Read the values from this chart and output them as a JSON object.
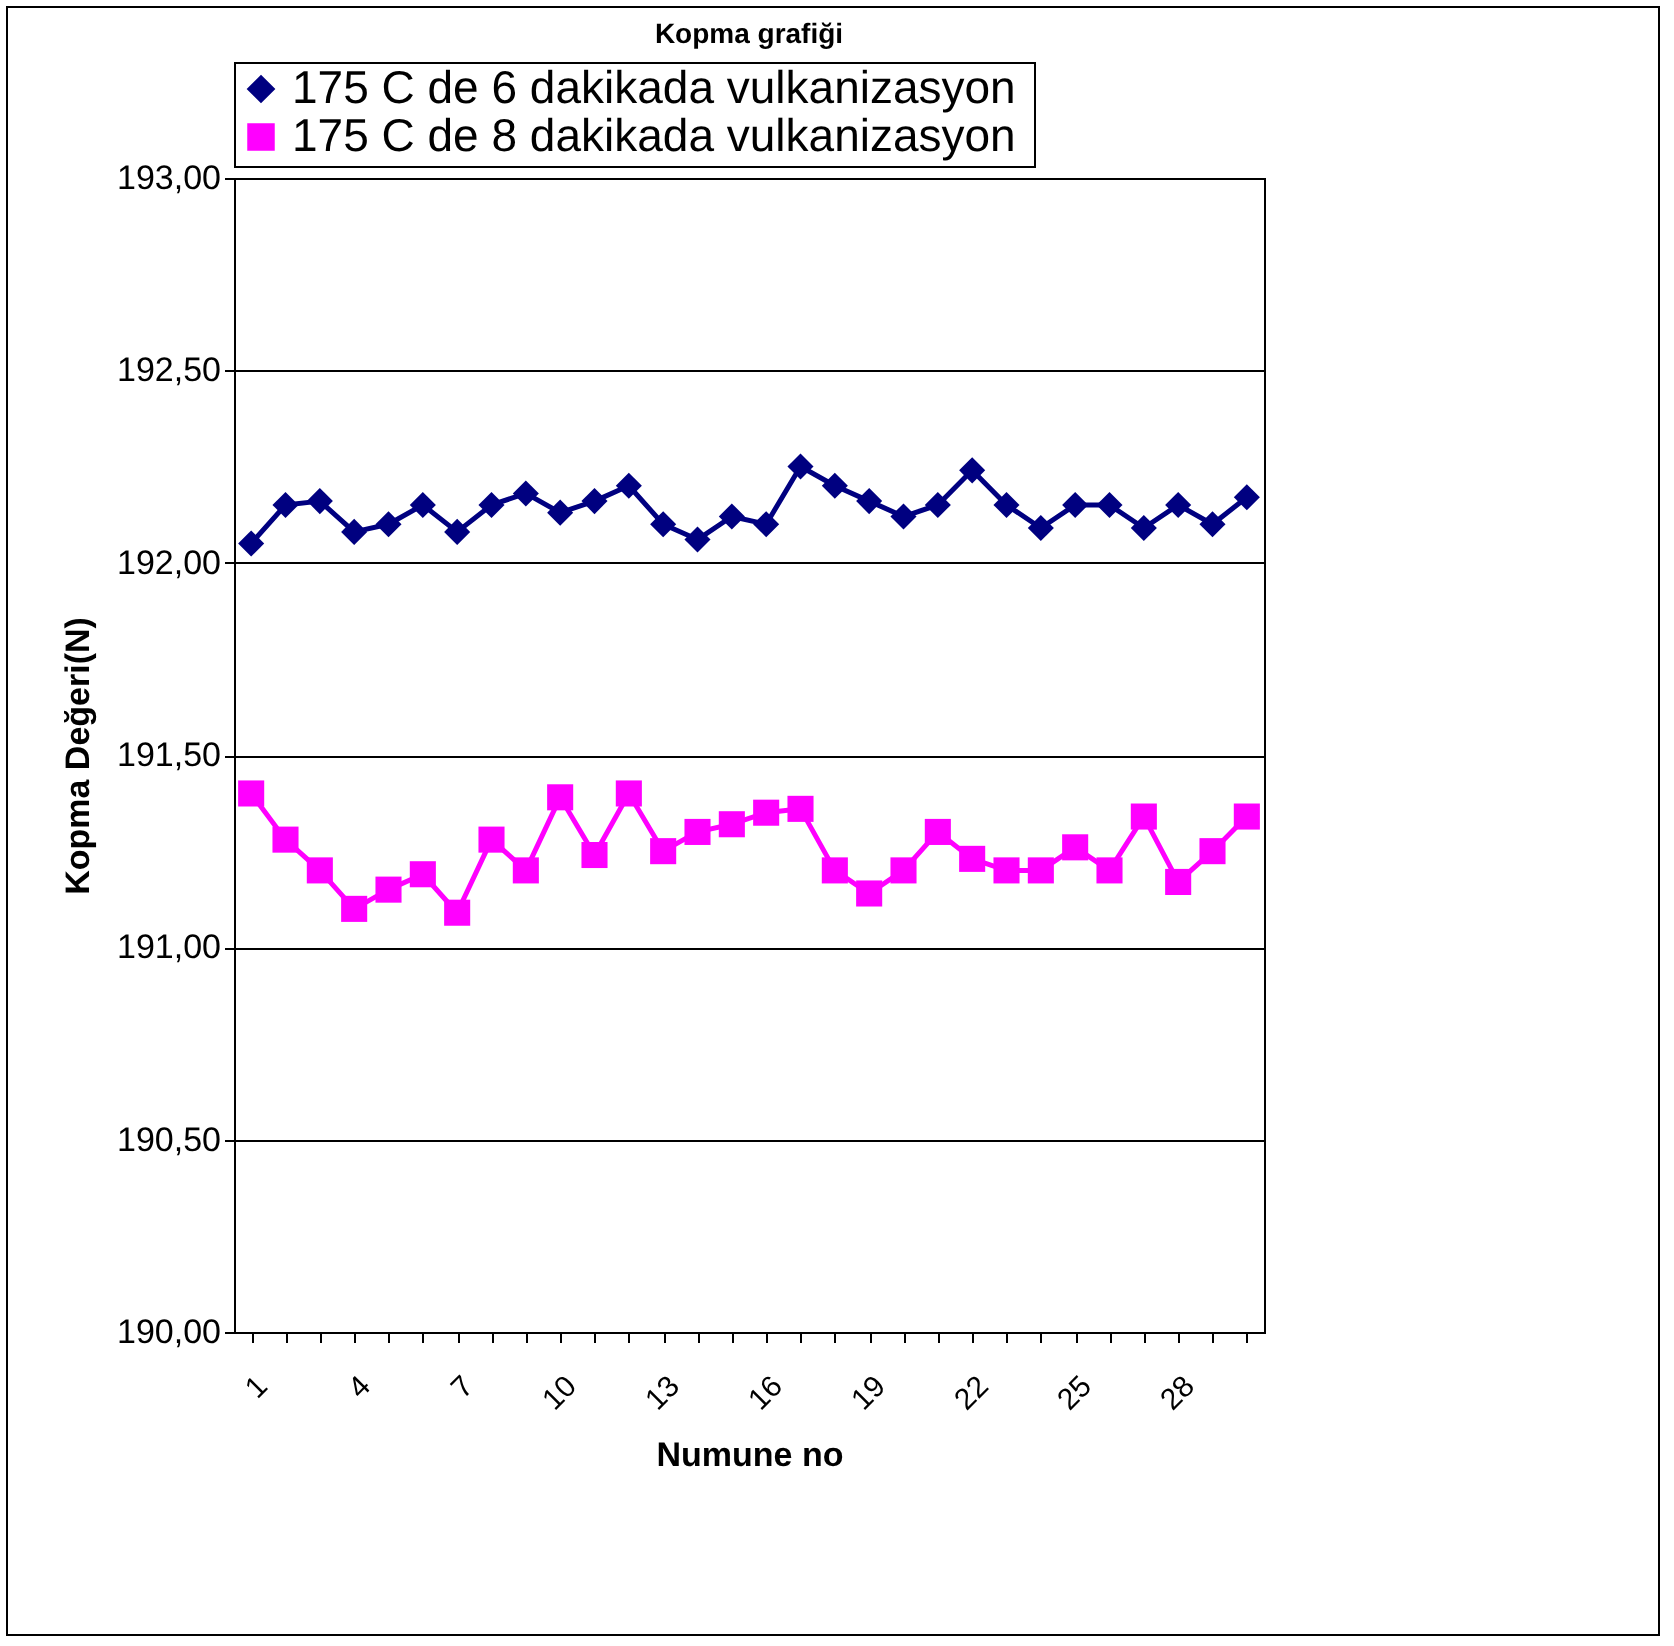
{
  "chart_data": {
    "type": "line",
    "title": "Kopma grafiği",
    "xlabel": "Numune no",
    "ylabel": "Kopma Değeri(N)",
    "categories": [
      "1",
      null,
      null,
      "4",
      null,
      null,
      "7",
      null,
      null,
      "10",
      null,
      null,
      "13",
      null,
      null,
      "16",
      null,
      null,
      "19",
      null,
      null,
      "22",
      null,
      null,
      "25",
      null,
      null,
      "28",
      null,
      null
    ],
    "series": [
      {
        "name": "175 C de 6 dakikada vulkanizasyon",
        "color": "#000080",
        "marker": "diamond",
        "values": [
          192.05,
          192.15,
          192.16,
          192.08,
          192.1,
          192.15,
          192.08,
          192.15,
          192.18,
          192.13,
          192.16,
          192.2,
          192.1,
          192.06,
          192.12,
          192.1,
          192.25,
          192.2,
          192.16,
          192.12,
          192.15,
          192.24,
          192.15,
          192.09,
          192.15,
          192.15,
          192.09,
          192.15,
          192.1,
          192.17
        ]
      },
      {
        "name": "175 C  de 8 dakikada vulkanizasyon",
        "color": "#ff00ff",
        "marker": "square",
        "values": [
          191.4,
          191.28,
          191.2,
          191.1,
          191.15,
          191.19,
          191.09,
          191.28,
          191.2,
          191.39,
          191.24,
          191.4,
          191.25,
          191.3,
          191.32,
          191.35,
          191.36,
          191.2,
          191.14,
          191.2,
          191.3,
          191.23,
          191.2,
          191.2,
          191.26,
          191.2,
          191.34,
          191.17,
          191.25,
          191.34
        ]
      }
    ],
    "ylim": [
      190,
      193
    ],
    "yticks": [
      {
        "value": 190,
        "label": "190,00"
      },
      {
        "value": 190.5,
        "label": "190,50"
      },
      {
        "value": 191,
        "label": "191,00"
      },
      {
        "value": 191.5,
        "label": "191,50"
      },
      {
        "value": 192,
        "label": "192,00"
      },
      {
        "value": 192.5,
        "label": "192,50"
      },
      {
        "value": 193,
        "label": "193,00"
      }
    ],
    "grid": "y",
    "legend": "top",
    "line_style": "solid"
  }
}
